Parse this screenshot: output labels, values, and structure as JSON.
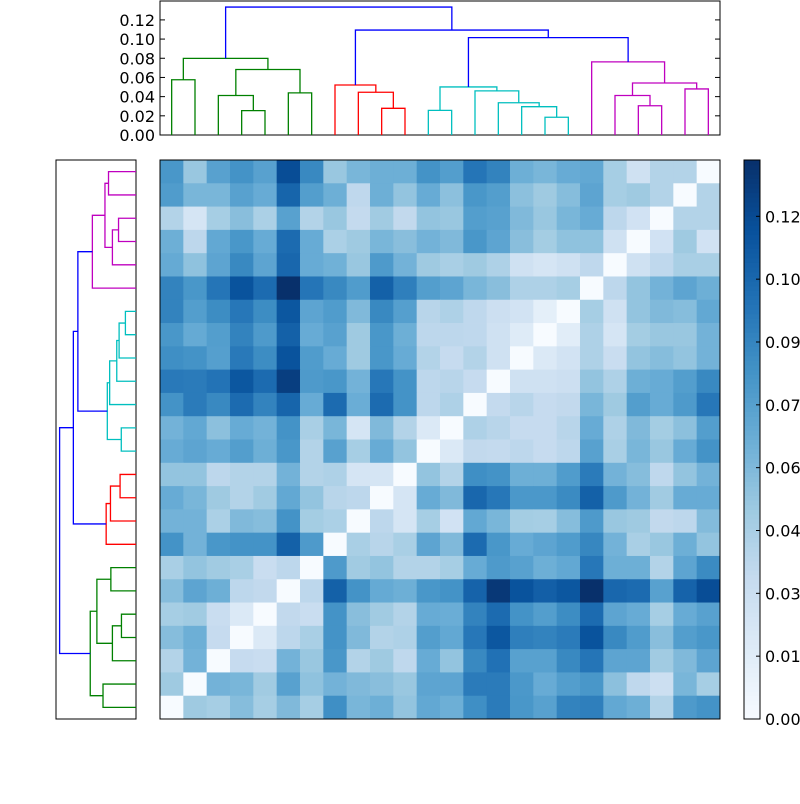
{
  "chart_data": {
    "type": "heatmap",
    "title": "",
    "leaf_count": 24,
    "dendrogram": {
      "ylim": [
        0,
        0.1397
      ],
      "yticks": [
        0.0,
        0.02,
        0.04,
        0.06,
        0.08,
        0.1,
        0.12
      ],
      "ytick_labels": [
        "0.00",
        "0.02",
        "0.04",
        "0.06",
        "0.08",
        "0.10",
        "0.12"
      ],
      "colors": {
        "green": "#008000",
        "red": "#ff0000",
        "cyan": "#00bfbf",
        "magenta": "#bf00bf",
        "blue": "#0000ff"
      },
      "merges": [
        {
          "id": 24,
          "a": 3,
          "b": 4,
          "height": 0.0254,
          "color": "green"
        },
        {
          "id": 25,
          "a": 2,
          "b": 24,
          "height": 0.0412,
          "color": "green"
        },
        {
          "id": 26,
          "a": 5,
          "b": 6,
          "height": 0.0439,
          "color": "green"
        },
        {
          "id": 27,
          "a": 25,
          "b": 26,
          "height": 0.0683,
          "color": "green"
        },
        {
          "id": 28,
          "a": 0,
          "b": 1,
          "height": 0.0576,
          "color": "green"
        },
        {
          "id": 29,
          "a": 28,
          "b": 27,
          "height": 0.0799,
          "color": "green"
        },
        {
          "id": 30,
          "a": 9,
          "b": 10,
          "height": 0.0278,
          "color": "red"
        },
        {
          "id": 31,
          "a": 8,
          "b": 30,
          "height": 0.0446,
          "color": "red"
        },
        {
          "id": 32,
          "a": 7,
          "b": 31,
          "height": 0.0521,
          "color": "red"
        },
        {
          "id": 33,
          "a": 16,
          "b": 17,
          "height": 0.0185,
          "color": "cyan"
        },
        {
          "id": 34,
          "a": 15,
          "b": 33,
          "height": 0.0295,
          "color": "cyan"
        },
        {
          "id": 35,
          "a": 14,
          "b": 34,
          "height": 0.0336,
          "color": "cyan"
        },
        {
          "id": 36,
          "a": 13,
          "b": 35,
          "height": 0.046,
          "color": "cyan"
        },
        {
          "id": 37,
          "a": 11,
          "b": 12,
          "height": 0.0257,
          "color": "cyan"
        },
        {
          "id": 38,
          "a": 37,
          "b": 36,
          "height": 0.0501,
          "color": "cyan"
        },
        {
          "id": 39,
          "a": 20,
          "b": 21,
          "height": 0.0305,
          "color": "magenta"
        },
        {
          "id": 40,
          "a": 19,
          "b": 39,
          "height": 0.0412,
          "color": "magenta"
        },
        {
          "id": 41,
          "a": 22,
          "b": 23,
          "height": 0.048,
          "color": "magenta"
        },
        {
          "id": 42,
          "a": 40,
          "b": 41,
          "height": 0.0542,
          "color": "magenta"
        },
        {
          "id": 43,
          "a": 18,
          "b": 42,
          "height": 0.0762,
          "color": "magenta"
        },
        {
          "id": 44,
          "a": 38,
          "b": 43,
          "height": 0.1015,
          "color": "blue"
        },
        {
          "id": 45,
          "a": 32,
          "b": 44,
          "height": 0.1094,
          "color": "blue"
        },
        {
          "id": 46,
          "a": 29,
          "b": 45,
          "height": 0.1334,
          "color": "blue"
        }
      ]
    },
    "colormap": "Blues",
    "colormap_stops": [
      "#f7fbff",
      "#deebf7",
      "#c6dbef",
      "#9ecae1",
      "#6baed6",
      "#4292c6",
      "#2171b5",
      "#08519c",
      "#08306b"
    ],
    "clim": [
      0,
      0.129
    ],
    "colorbar": {
      "ticks": [
        0,
        0.0145,
        0.029,
        0.0435,
        0.058,
        0.0725,
        0.087,
        0.1015,
        0.116
      ],
      "tick_labels": [
        "0.00",
        "0.01",
        "0.03",
        "0.04",
        "0.06",
        "0.07",
        "0.09",
        "0.10",
        "0.12"
      ]
    },
    "matrix_row_order": "top row = leaf 23, bottom row = leaf 0; columns = leaf 0..23",
    "matrix": [
      [
        0.078,
        0.05,
        0.072,
        0.08,
        0.072,
        0.115,
        0.085,
        0.05,
        0.06,
        0.064,
        0.064,
        0.08,
        0.074,
        0.095,
        0.088,
        0.064,
        0.06,
        0.066,
        0.068,
        0.045,
        0.026,
        0.04,
        0.04,
        0
      ],
      [
        0.075,
        0.06,
        0.06,
        0.072,
        0.066,
        0.103,
        0.074,
        0.064,
        0.035,
        0.064,
        0.052,
        0.066,
        0.054,
        0.078,
        0.074,
        0.054,
        0.048,
        0.056,
        0.07,
        0.045,
        0.048,
        0.04,
        0,
        0.04
      ],
      [
        0.04,
        0.022,
        0.045,
        0.055,
        0.043,
        0.072,
        0.04,
        0.05,
        0.033,
        0.047,
        0.034,
        0.052,
        0.05,
        0.074,
        0.072,
        0.058,
        0.05,
        0.06,
        0.066,
        0.036,
        0.025,
        0,
        0.04,
        0.04
      ],
      [
        0.064,
        0.036,
        0.068,
        0.078,
        0.066,
        0.1,
        0.066,
        0.043,
        0.048,
        0.06,
        0.055,
        0.062,
        0.058,
        0.078,
        0.07,
        0.055,
        0.046,
        0.053,
        0.053,
        0.026,
        0,
        0.025,
        0.048,
        0.025
      ],
      [
        0.067,
        0.053,
        0.07,
        0.085,
        0.07,
        0.102,
        0.066,
        0.063,
        0.05,
        0.076,
        0.062,
        0.048,
        0.044,
        0.048,
        0.042,
        0.026,
        0.022,
        0.026,
        0.035,
        0,
        0.026,
        0.035,
        0.044,
        0.044
      ],
      [
        0.088,
        0.078,
        0.095,
        0.112,
        0.1,
        0.129,
        0.095,
        0.085,
        0.075,
        0.105,
        0.09,
        0.074,
        0.07,
        0.06,
        0.055,
        0.042,
        0.042,
        0.045,
        0,
        0.036,
        0.052,
        0.062,
        0.07,
        0.064
      ],
      [
        0.088,
        0.074,
        0.083,
        0.094,
        0.083,
        0.11,
        0.07,
        0.075,
        0.058,
        0.085,
        0.073,
        0.038,
        0.042,
        0.035,
        0.028,
        0.024,
        0.012,
        0,
        0.045,
        0.026,
        0.052,
        0.058,
        0.056,
        0.068
      ],
      [
        0.078,
        0.067,
        0.074,
        0.088,
        0.076,
        0.105,
        0.066,
        0.072,
        0.048,
        0.078,
        0.064,
        0.036,
        0.036,
        0.035,
        0.026,
        0.016,
        0,
        0.014,
        0.042,
        0.022,
        0.046,
        0.05,
        0.05,
        0.062
      ],
      [
        0.082,
        0.08,
        0.073,
        0.093,
        0.083,
        0.112,
        0.075,
        0.066,
        0.048,
        0.078,
        0.066,
        0.04,
        0.032,
        0.04,
        0.026,
        0,
        0.018,
        0.024,
        0.042,
        0.03,
        0.052,
        0.056,
        0.052,
        0.062
      ],
      [
        0.093,
        0.092,
        0.096,
        0.11,
        0.1,
        0.122,
        0.076,
        0.078,
        0.062,
        0.094,
        0.08,
        0.036,
        0.038,
        0.032,
        0,
        0.026,
        0.026,
        0.028,
        0.052,
        0.042,
        0.064,
        0.066,
        0.074,
        0.085
      ],
      [
        0.08,
        0.092,
        0.085,
        0.1,
        0.088,
        0.103,
        0.066,
        0.1,
        0.065,
        0.1,
        0.08,
        0.036,
        0.042,
        0,
        0.033,
        0.038,
        0.032,
        0.034,
        0.06,
        0.048,
        0.074,
        0.066,
        0.076,
        0.094
      ],
      [
        0.062,
        0.068,
        0.054,
        0.066,
        0.062,
        0.08,
        0.044,
        0.06,
        0.022,
        0.058,
        0.04,
        0.018,
        0,
        0.042,
        0.038,
        0.032,
        0.032,
        0.038,
        0.066,
        0.042,
        0.058,
        0.046,
        0.054,
        0.074
      ],
      [
        0.066,
        0.07,
        0.066,
        0.074,
        0.064,
        0.078,
        0.04,
        0.072,
        0.045,
        0.066,
        0.052,
        0,
        0.018,
        0.034,
        0.033,
        0.036,
        0.032,
        0.036,
        0.072,
        0.044,
        0.06,
        0.05,
        0.066,
        0.08
      ],
      [
        0.052,
        0.052,
        0.036,
        0.04,
        0.04,
        0.062,
        0.04,
        0.042,
        0.022,
        0.022,
        0,
        0.052,
        0.04,
        0.082,
        0.08,
        0.064,
        0.064,
        0.075,
        0.092,
        0.062,
        0.056,
        0.035,
        0.052,
        0.062
      ],
      [
        0.066,
        0.06,
        0.048,
        0.04,
        0.047,
        0.068,
        0.052,
        0.038,
        0.036,
        0,
        0.022,
        0.066,
        0.058,
        0.102,
        0.094,
        0.077,
        0.077,
        0.084,
        0.105,
        0.076,
        0.062,
        0.047,
        0.066,
        0.066
      ],
      [
        0.062,
        0.062,
        0.043,
        0.058,
        0.056,
        0.08,
        0.046,
        0.043,
        0,
        0.036,
        0.022,
        0.045,
        0.025,
        0.068,
        0.06,
        0.046,
        0.045,
        0.056,
        0.076,
        0.05,
        0.048,
        0.034,
        0.036,
        0.057
      ],
      [
        0.08,
        0.062,
        0.078,
        0.08,
        0.08,
        0.105,
        0.076,
        0,
        0.044,
        0.038,
        0.044,
        0.07,
        0.058,
        0.1,
        0.078,
        0.066,
        0.07,
        0.075,
        0.086,
        0.062,
        0.044,
        0.05,
        0.064,
        0.052
      ],
      [
        0.044,
        0.052,
        0.047,
        0.044,
        0.03,
        0.036,
        0,
        0.076,
        0.047,
        0.052,
        0.04,
        0.04,
        0.045,
        0.066,
        0.076,
        0.072,
        0.064,
        0.068,
        0.094,
        0.064,
        0.064,
        0.04,
        0.07,
        0.084
      ],
      [
        0.056,
        0.07,
        0.064,
        0.036,
        0.034,
        0,
        0.036,
        0.105,
        0.08,
        0.067,
        0.064,
        0.078,
        0.08,
        0.104,
        0.125,
        0.112,
        0.106,
        0.11,
        0.129,
        0.102,
        0.1,
        0.072,
        0.104,
        0.115
      ],
      [
        0.045,
        0.047,
        0.03,
        0.018,
        0,
        0.034,
        0.03,
        0.08,
        0.055,
        0.047,
        0.04,
        0.066,
        0.065,
        0.088,
        0.1,
        0.08,
        0.074,
        0.083,
        0.1,
        0.07,
        0.066,
        0.045,
        0.066,
        0.072
      ],
      [
        0.056,
        0.064,
        0.032,
        0,
        0.018,
        0.036,
        0.044,
        0.08,
        0.058,
        0.04,
        0.042,
        0.074,
        0.068,
        0.094,
        0.11,
        0.09,
        0.088,
        0.092,
        0.112,
        0.085,
        0.075,
        0.055,
        0.074,
        0.078
      ],
      [
        0.04,
        0.062,
        0,
        0.032,
        0.03,
        0.062,
        0.05,
        0.078,
        0.04,
        0.048,
        0.035,
        0.066,
        0.052,
        0.085,
        0.097,
        0.072,
        0.072,
        0.085,
        0.095,
        0.07,
        0.07,
        0.047,
        0.058,
        0.07
      ],
      [
        0.048,
        0,
        0.062,
        0.06,
        0.047,
        0.072,
        0.053,
        0.062,
        0.058,
        0.055,
        0.05,
        0.07,
        0.07,
        0.092,
        0.092,
        0.077,
        0.066,
        0.074,
        0.078,
        0.054,
        0.035,
        0.028,
        0.06,
        0.045
      ],
      [
        0,
        0.048,
        0.045,
        0.056,
        0.045,
        0.058,
        0.045,
        0.082,
        0.06,
        0.064,
        0.052,
        0.068,
        0.064,
        0.082,
        0.092,
        0.078,
        0.072,
        0.088,
        0.09,
        0.068,
        0.064,
        0.04,
        0.076,
        0.08
      ]
    ]
  }
}
